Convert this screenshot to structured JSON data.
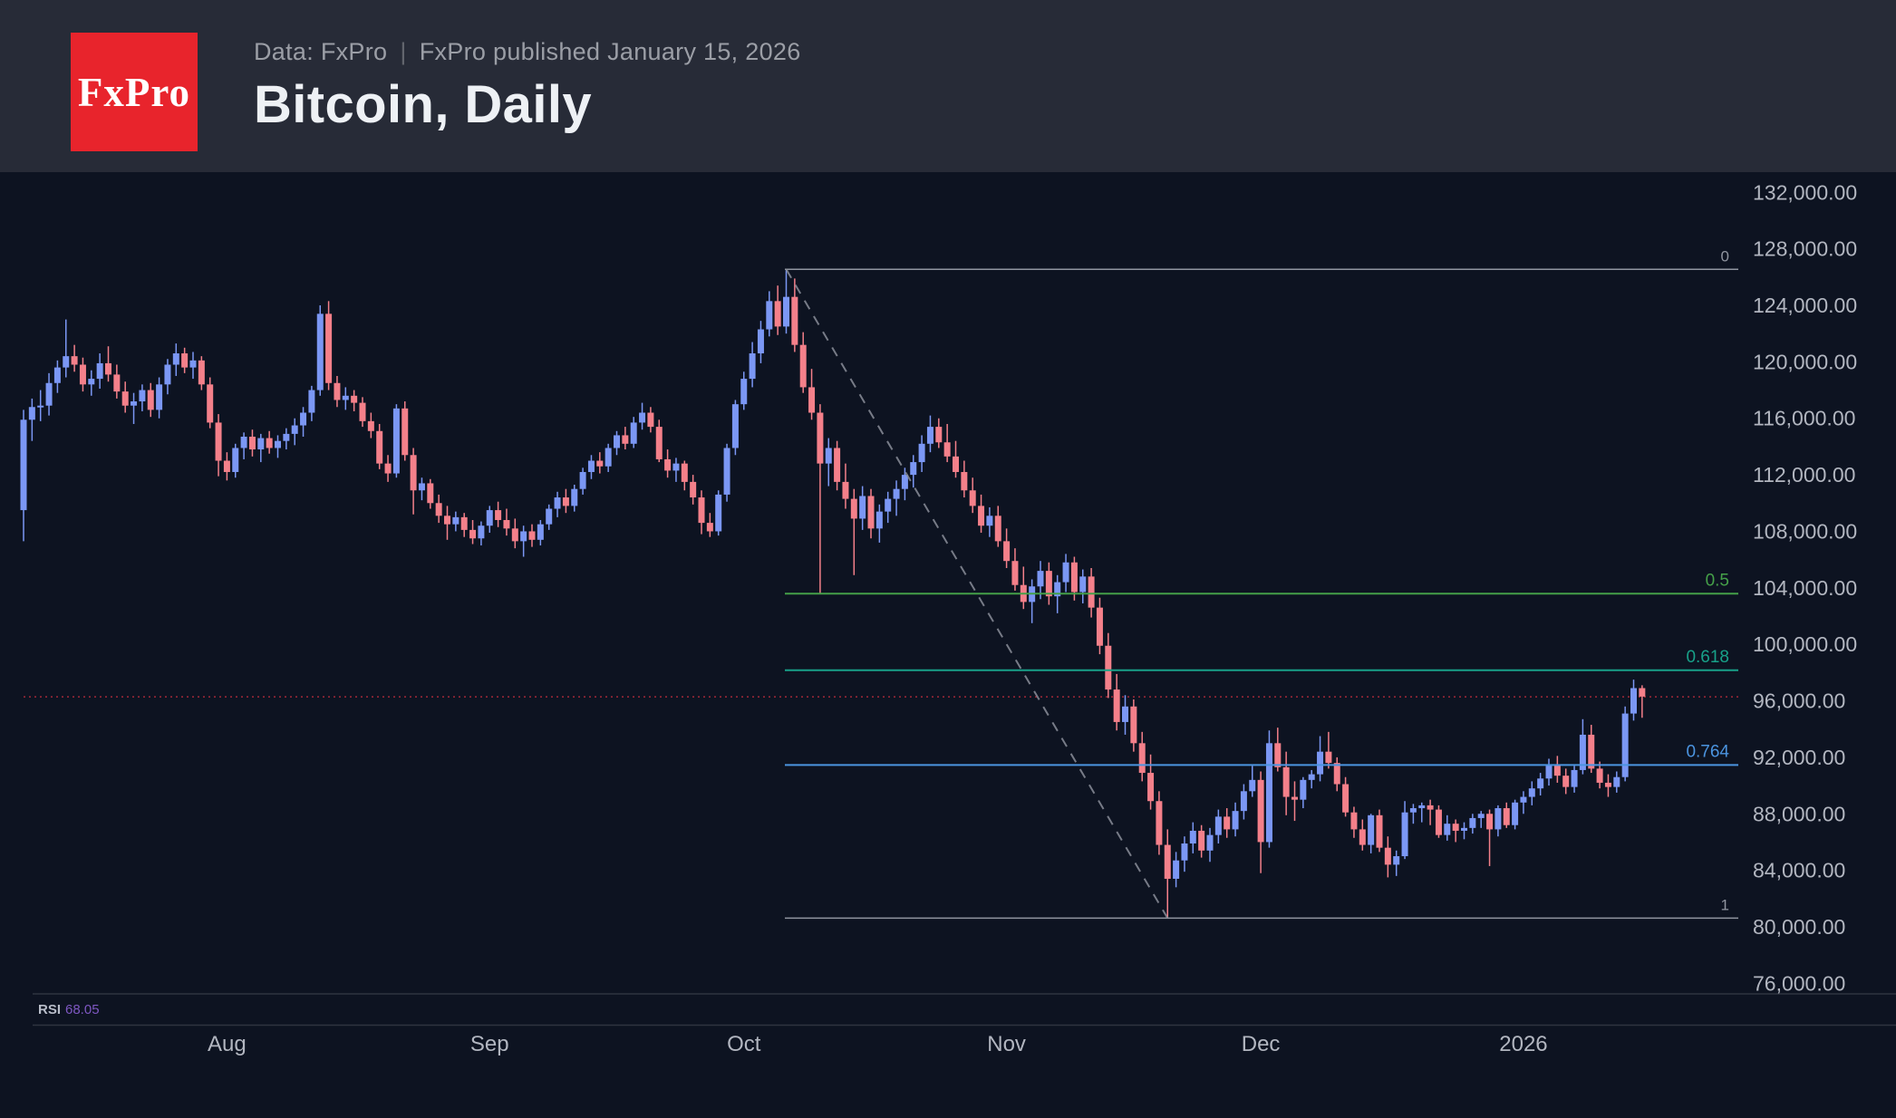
{
  "header": {
    "logo_text": "FxPro",
    "subtitle_left": "Data: FxPro",
    "subtitle_separator": "|",
    "subtitle_right": "FxPro published January 15, 2026",
    "title": "Bitcoin, Daily"
  },
  "colors": {
    "header_bg": "#272b37",
    "chart_bg": "#0d1321",
    "logo_bg": "#e8242c",
    "candle_up": "#7b97f4",
    "candle_down": "#f4808a",
    "fib_gray": "#9095a0",
    "fib_green": "#45a049",
    "fib_teal": "#18a189",
    "fib_blue": "#4b94e0",
    "price_line": "#f23645",
    "trend_line": "#8a8e99",
    "axis_text": "#b2b6c0",
    "separator": "#2f3440",
    "rsi_label": "#b8bdc9",
    "rsi_value": "#7e57c2"
  },
  "price_axis": {
    "labels": [
      "132,000.00",
      "128,000.00",
      "124,000.00",
      "120,000.00",
      "116,000.00",
      "112,000.00",
      "108,000.00",
      "104,000.00",
      "100,000.00",
      "96,000.00",
      "92,000.00",
      "88,000.00",
      "84,000.00",
      "80,000.00",
      "76,000.00"
    ],
    "top_value": 132000,
    "step": 4000
  },
  "time_axis": {
    "labels": [
      {
        "text": "Aug",
        "day": 24
      },
      {
        "text": "Sep",
        "day": 55
      },
      {
        "text": "Oct",
        "day": 85
      },
      {
        "text": "Nov",
        "day": 116
      },
      {
        "text": "Dec",
        "day": 146
      },
      {
        "text": "2026",
        "day": 177
      }
    ]
  },
  "rsi": {
    "label": "RSI",
    "value": "68.05"
  },
  "chart_data": {
    "type": "candlestick",
    "title": "Bitcoin, Daily",
    "unit": "USD (thousands)",
    "start_date": "2025-07-08",
    "ylim": [
      76000,
      132000
    ],
    "grid": false,
    "current_price": 96280,
    "rsi_value": 68.05,
    "fib_levels": [
      {
        "label": "0",
        "price": 126550,
        "color": "#9095a0"
      },
      {
        "label": "0.5",
        "price": 103585,
        "color": "#45a049"
      },
      {
        "label": "0.618",
        "price": 98166,
        "color": "#18a189"
      },
      {
        "label": "0.764",
        "price": 91459,
        "color": "#4b94e0"
      },
      {
        "label": "1",
        "price": 80620,
        "color": "#9095a0"
      }
    ],
    "trend_line": {
      "from": {
        "day": 90,
        "price": 126550
      },
      "to": {
        "day": 135,
        "price": 80620
      }
    },
    "ohlc": [
      [
        109.5,
        116.6,
        107.3,
        115.9
      ],
      [
        115.9,
        117.4,
        114.4,
        116.8
      ],
      [
        116.8,
        118.0,
        115.8,
        116.9
      ],
      [
        116.9,
        119.2,
        116.2,
        118.5
      ],
      [
        118.5,
        120.1,
        117.8,
        119.6
      ],
      [
        119.6,
        123.0,
        118.9,
        120.4
      ],
      [
        120.4,
        121.2,
        119.3,
        119.8
      ],
      [
        119.8,
        120.3,
        117.9,
        118.4
      ],
      [
        118.4,
        119.4,
        117.6,
        118.8
      ],
      [
        118.8,
        120.6,
        118.1,
        119.9
      ],
      [
        119.9,
        121.1,
        118.6,
        119.1
      ],
      [
        119.1,
        119.8,
        117.4,
        117.9
      ],
      [
        117.9,
        118.6,
        116.4,
        116.9
      ],
      [
        116.9,
        117.8,
        115.6,
        117.2
      ],
      [
        117.2,
        118.4,
        116.5,
        118.0
      ],
      [
        118.0,
        118.5,
        116.1,
        116.6
      ],
      [
        116.6,
        118.9,
        116.0,
        118.4
      ],
      [
        118.4,
        120.2,
        117.7,
        119.8
      ],
      [
        119.8,
        121.3,
        119.0,
        120.6
      ],
      [
        120.6,
        121.0,
        119.2,
        119.6
      ],
      [
        119.6,
        120.7,
        118.8,
        120.1
      ],
      [
        120.1,
        120.4,
        118.0,
        118.4
      ],
      [
        118.4,
        118.9,
        115.3,
        115.7
      ],
      [
        115.7,
        116.3,
        111.9,
        113.0
      ],
      [
        113.0,
        113.6,
        111.6,
        112.2
      ],
      [
        112.2,
        114.2,
        111.8,
        113.9
      ],
      [
        113.9,
        115.0,
        113.1,
        114.7
      ],
      [
        114.7,
        115.2,
        113.3,
        113.8
      ],
      [
        113.8,
        114.9,
        112.9,
        114.6
      ],
      [
        114.6,
        115.1,
        113.5,
        113.9
      ],
      [
        113.9,
        114.8,
        113.2,
        114.4
      ],
      [
        114.4,
        115.3,
        113.8,
        114.9
      ],
      [
        114.9,
        116.0,
        114.1,
        115.5
      ],
      [
        115.5,
        116.8,
        114.7,
        116.4
      ],
      [
        116.4,
        118.3,
        115.8,
        118.0
      ],
      [
        118.0,
        124.0,
        117.6,
        123.4
      ],
      [
        123.4,
        124.3,
        118.0,
        118.5
      ],
      [
        118.5,
        119.0,
        116.8,
        117.3
      ],
      [
        117.3,
        118.2,
        116.6,
        117.6
      ],
      [
        117.6,
        118.0,
        116.5,
        117.1
      ],
      [
        117.1,
        117.5,
        115.4,
        115.8
      ],
      [
        115.8,
        116.4,
        114.6,
        115.1
      ],
      [
        115.1,
        115.6,
        112.4,
        112.8
      ],
      [
        112.8,
        113.4,
        111.5,
        112.1
      ],
      [
        112.1,
        117.0,
        111.8,
        116.7
      ],
      [
        116.7,
        117.2,
        113.0,
        113.4
      ],
      [
        113.4,
        113.9,
        109.2,
        110.9
      ],
      [
        110.9,
        111.8,
        110.2,
        111.4
      ],
      [
        111.4,
        111.7,
        109.6,
        110.0
      ],
      [
        110.0,
        110.6,
        108.6,
        109.1
      ],
      [
        109.1,
        109.8,
        107.4,
        108.5
      ],
      [
        108.5,
        109.4,
        108.0,
        109.0
      ],
      [
        109.0,
        109.3,
        107.6,
        108.1
      ],
      [
        108.1,
        108.8,
        107.1,
        107.5
      ],
      [
        107.5,
        108.7,
        107.0,
        108.4
      ],
      [
        108.4,
        109.8,
        107.9,
        109.5
      ],
      [
        109.5,
        110.1,
        108.3,
        108.8
      ],
      [
        108.8,
        109.6,
        107.7,
        108.2
      ],
      [
        108.2,
        108.9,
        106.8,
        107.3
      ],
      [
        107.3,
        108.4,
        106.2,
        108.0
      ],
      [
        108.0,
        108.5,
        106.9,
        107.4
      ],
      [
        107.4,
        108.8,
        107.0,
        108.5
      ],
      [
        108.5,
        109.9,
        108.1,
        109.6
      ],
      [
        109.6,
        110.8,
        109.0,
        110.4
      ],
      [
        110.4,
        111.0,
        109.3,
        109.8
      ],
      [
        109.8,
        111.3,
        109.4,
        111.0
      ],
      [
        111.0,
        112.5,
        110.6,
        112.2
      ],
      [
        112.2,
        113.4,
        111.7,
        113.0
      ],
      [
        113.0,
        113.6,
        112.1,
        112.6
      ],
      [
        112.6,
        114.2,
        112.2,
        113.9
      ],
      [
        113.9,
        115.1,
        113.4,
        114.8
      ],
      [
        114.8,
        115.4,
        113.8,
        114.2
      ],
      [
        114.2,
        116.1,
        113.9,
        115.7
      ],
      [
        115.7,
        117.1,
        115.2,
        116.4
      ],
      [
        116.4,
        116.8,
        115.0,
        115.4
      ],
      [
        115.4,
        115.9,
        112.9,
        113.1
      ],
      [
        113.1,
        113.8,
        111.8,
        112.3
      ],
      [
        112.3,
        113.2,
        111.5,
        112.8
      ],
      [
        112.8,
        113.0,
        110.9,
        111.5
      ],
      [
        111.5,
        112.0,
        109.9,
        110.4
      ],
      [
        110.4,
        110.9,
        107.8,
        108.6
      ],
      [
        108.6,
        109.3,
        107.6,
        108.0
      ],
      [
        108.0,
        110.9,
        107.7,
        110.6
      ],
      [
        110.6,
        114.2,
        110.1,
        113.9
      ],
      [
        113.9,
        117.3,
        113.4,
        117.0
      ],
      [
        117.0,
        119.3,
        116.6,
        118.8
      ],
      [
        118.8,
        121.4,
        118.2,
        120.6
      ],
      [
        120.6,
        122.9,
        119.9,
        122.3
      ],
      [
        122.3,
        125.0,
        121.8,
        124.3
      ],
      [
        124.3,
        125.4,
        121.9,
        122.5
      ],
      [
        122.5,
        126.5,
        122.0,
        124.6
      ],
      [
        124.6,
        125.9,
        120.7,
        121.2
      ],
      [
        121.2,
        122.1,
        117.8,
        118.2
      ],
      [
        118.2,
        119.5,
        115.9,
        116.4
      ],
      [
        116.4,
        117.0,
        103.6,
        112.8
      ],
      [
        112.8,
        114.6,
        111.2,
        113.9
      ],
      [
        113.9,
        114.4,
        110.9,
        111.5
      ],
      [
        111.5,
        112.8,
        109.6,
        110.3
      ],
      [
        110.3,
        111.0,
        104.9,
        108.9
      ],
      [
        108.9,
        111.2,
        108.1,
        110.5
      ],
      [
        110.5,
        111.0,
        107.5,
        108.2
      ],
      [
        108.2,
        109.9,
        107.2,
        109.4
      ],
      [
        109.4,
        110.8,
        108.6,
        110.3
      ],
      [
        110.3,
        111.6,
        109.1,
        111.0
      ],
      [
        111.0,
        112.5,
        110.2,
        112.0
      ],
      [
        112.0,
        113.4,
        111.1,
        112.9
      ],
      [
        112.9,
        114.8,
        112.2,
        114.2
      ],
      [
        114.2,
        116.2,
        113.6,
        115.4
      ],
      [
        115.4,
        116.0,
        113.9,
        114.3
      ],
      [
        114.3,
        115.6,
        112.9,
        113.3
      ],
      [
        113.3,
        114.4,
        111.8,
        112.2
      ],
      [
        112.2,
        113.0,
        110.4,
        110.9
      ],
      [
        110.9,
        111.8,
        109.3,
        109.8
      ],
      [
        109.8,
        110.6,
        107.9,
        108.4
      ],
      [
        108.4,
        109.7,
        107.6,
        109.1
      ],
      [
        109.1,
        109.8,
        106.9,
        107.3
      ],
      [
        107.3,
        108.2,
        105.4,
        105.9
      ],
      [
        105.9,
        106.8,
        103.8,
        104.2
      ],
      [
        104.2,
        105.5,
        102.5,
        103.0
      ],
      [
        103.0,
        104.6,
        101.5,
        104.1
      ],
      [
        104.1,
        105.9,
        103.2,
        105.2
      ],
      [
        105.2,
        105.8,
        102.8,
        103.4
      ],
      [
        103.4,
        104.9,
        102.2,
        104.4
      ],
      [
        104.4,
        106.4,
        103.7,
        105.8
      ],
      [
        105.8,
        106.2,
        103.1,
        103.7
      ],
      [
        103.7,
        105.3,
        102.9,
        104.8
      ],
      [
        104.8,
        105.4,
        101.9,
        102.6
      ],
      [
        102.6,
        103.3,
        99.3,
        99.9
      ],
      [
        99.9,
        100.8,
        96.2,
        96.8
      ],
      [
        96.8,
        97.9,
        93.9,
        94.5
      ],
      [
        94.5,
        96.4,
        93.6,
        95.6
      ],
      [
        95.6,
        96.1,
        92.4,
        93.0
      ],
      [
        93.0,
        93.8,
        90.3,
        90.9
      ],
      [
        90.9,
        92.2,
        88.3,
        88.9
      ],
      [
        88.9,
        89.6,
        85.1,
        85.8
      ],
      [
        85.8,
        86.9,
        80.6,
        83.4
      ],
      [
        83.4,
        85.3,
        82.8,
        84.7
      ],
      [
        84.7,
        86.4,
        83.9,
        85.9
      ],
      [
        85.9,
        87.4,
        85.2,
        86.8
      ],
      [
        86.8,
        87.2,
        84.9,
        85.4
      ],
      [
        85.4,
        87.0,
        84.6,
        86.5
      ],
      [
        86.5,
        88.3,
        85.9,
        87.8
      ],
      [
        87.8,
        88.4,
        86.3,
        86.9
      ],
      [
        86.9,
        88.8,
        86.4,
        88.2
      ],
      [
        88.2,
        90.1,
        87.6,
        89.6
      ],
      [
        89.6,
        91.4,
        89.2,
        90.4
      ],
      [
        90.4,
        91.0,
        83.8,
        86.0
      ],
      [
        86.0,
        93.9,
        85.6,
        93.0
      ],
      [
        93.0,
        94.1,
        91.0,
        91.3
      ],
      [
        91.3,
        92.4,
        87.9,
        89.2
      ],
      [
        89.2,
        90.3,
        87.5,
        89.0
      ],
      [
        89.0,
        90.6,
        88.4,
        90.4
      ],
      [
        90.4,
        91.1,
        89.8,
        90.8
      ],
      [
        90.8,
        93.5,
        90.3,
        92.4
      ],
      [
        92.4,
        93.8,
        91.2,
        91.6
      ],
      [
        91.6,
        92.0,
        89.6,
        90.1
      ],
      [
        90.1,
        90.6,
        87.8,
        88.1
      ],
      [
        88.1,
        88.5,
        86.3,
        86.9
      ],
      [
        86.9,
        87.6,
        85.4,
        85.8
      ],
      [
        85.8,
        88.0,
        85.2,
        87.9
      ],
      [
        87.9,
        88.3,
        85.3,
        85.6
      ],
      [
        85.6,
        86.4,
        83.5,
        84.4
      ],
      [
        84.4,
        85.4,
        83.6,
        85.0
      ],
      [
        85.0,
        88.9,
        84.8,
        88.1
      ],
      [
        88.1,
        88.7,
        87.3,
        88.4
      ],
      [
        88.4,
        88.8,
        87.4,
        88.6
      ],
      [
        88.6,
        89.0,
        87.2,
        88.3
      ],
      [
        88.3,
        88.6,
        86.3,
        86.5
      ],
      [
        86.5,
        87.9,
        86.1,
        87.3
      ],
      [
        87.3,
        87.6,
        86.0,
        86.8
      ],
      [
        86.8,
        87.4,
        86.2,
        87.0
      ],
      [
        87.0,
        88.0,
        86.6,
        87.7
      ],
      [
        87.7,
        88.2,
        87.0,
        88.0
      ],
      [
        88.0,
        88.3,
        84.3,
        86.9
      ],
      [
        86.9,
        88.6,
        86.4,
        88.4
      ],
      [
        88.4,
        88.8,
        87.0,
        87.2
      ],
      [
        87.2,
        89.0,
        86.9,
        88.8
      ],
      [
        88.8,
        89.6,
        88.0,
        89.2
      ],
      [
        89.2,
        90.3,
        88.6,
        89.8
      ],
      [
        89.8,
        90.9,
        89.3,
        90.5
      ],
      [
        90.5,
        91.9,
        90.0,
        91.5
      ],
      [
        91.5,
        92.1,
        90.2,
        90.7
      ],
      [
        90.7,
        91.2,
        89.4,
        89.9
      ],
      [
        89.9,
        91.4,
        89.5,
        91.1
      ],
      [
        91.1,
        94.7,
        90.8,
        93.6
      ],
      [
        93.6,
        94.3,
        90.9,
        91.2
      ],
      [
        91.2,
        91.7,
        89.8,
        90.2
      ],
      [
        90.2,
        90.8,
        89.2,
        89.9
      ],
      [
        89.9,
        91.0,
        89.5,
        90.6
      ],
      [
        90.6,
        95.6,
        90.3,
        95.1
      ],
      [
        95.1,
        97.5,
        94.6,
        96.9
      ],
      [
        96.9,
        97.1,
        94.8,
        96.3
      ]
    ]
  }
}
